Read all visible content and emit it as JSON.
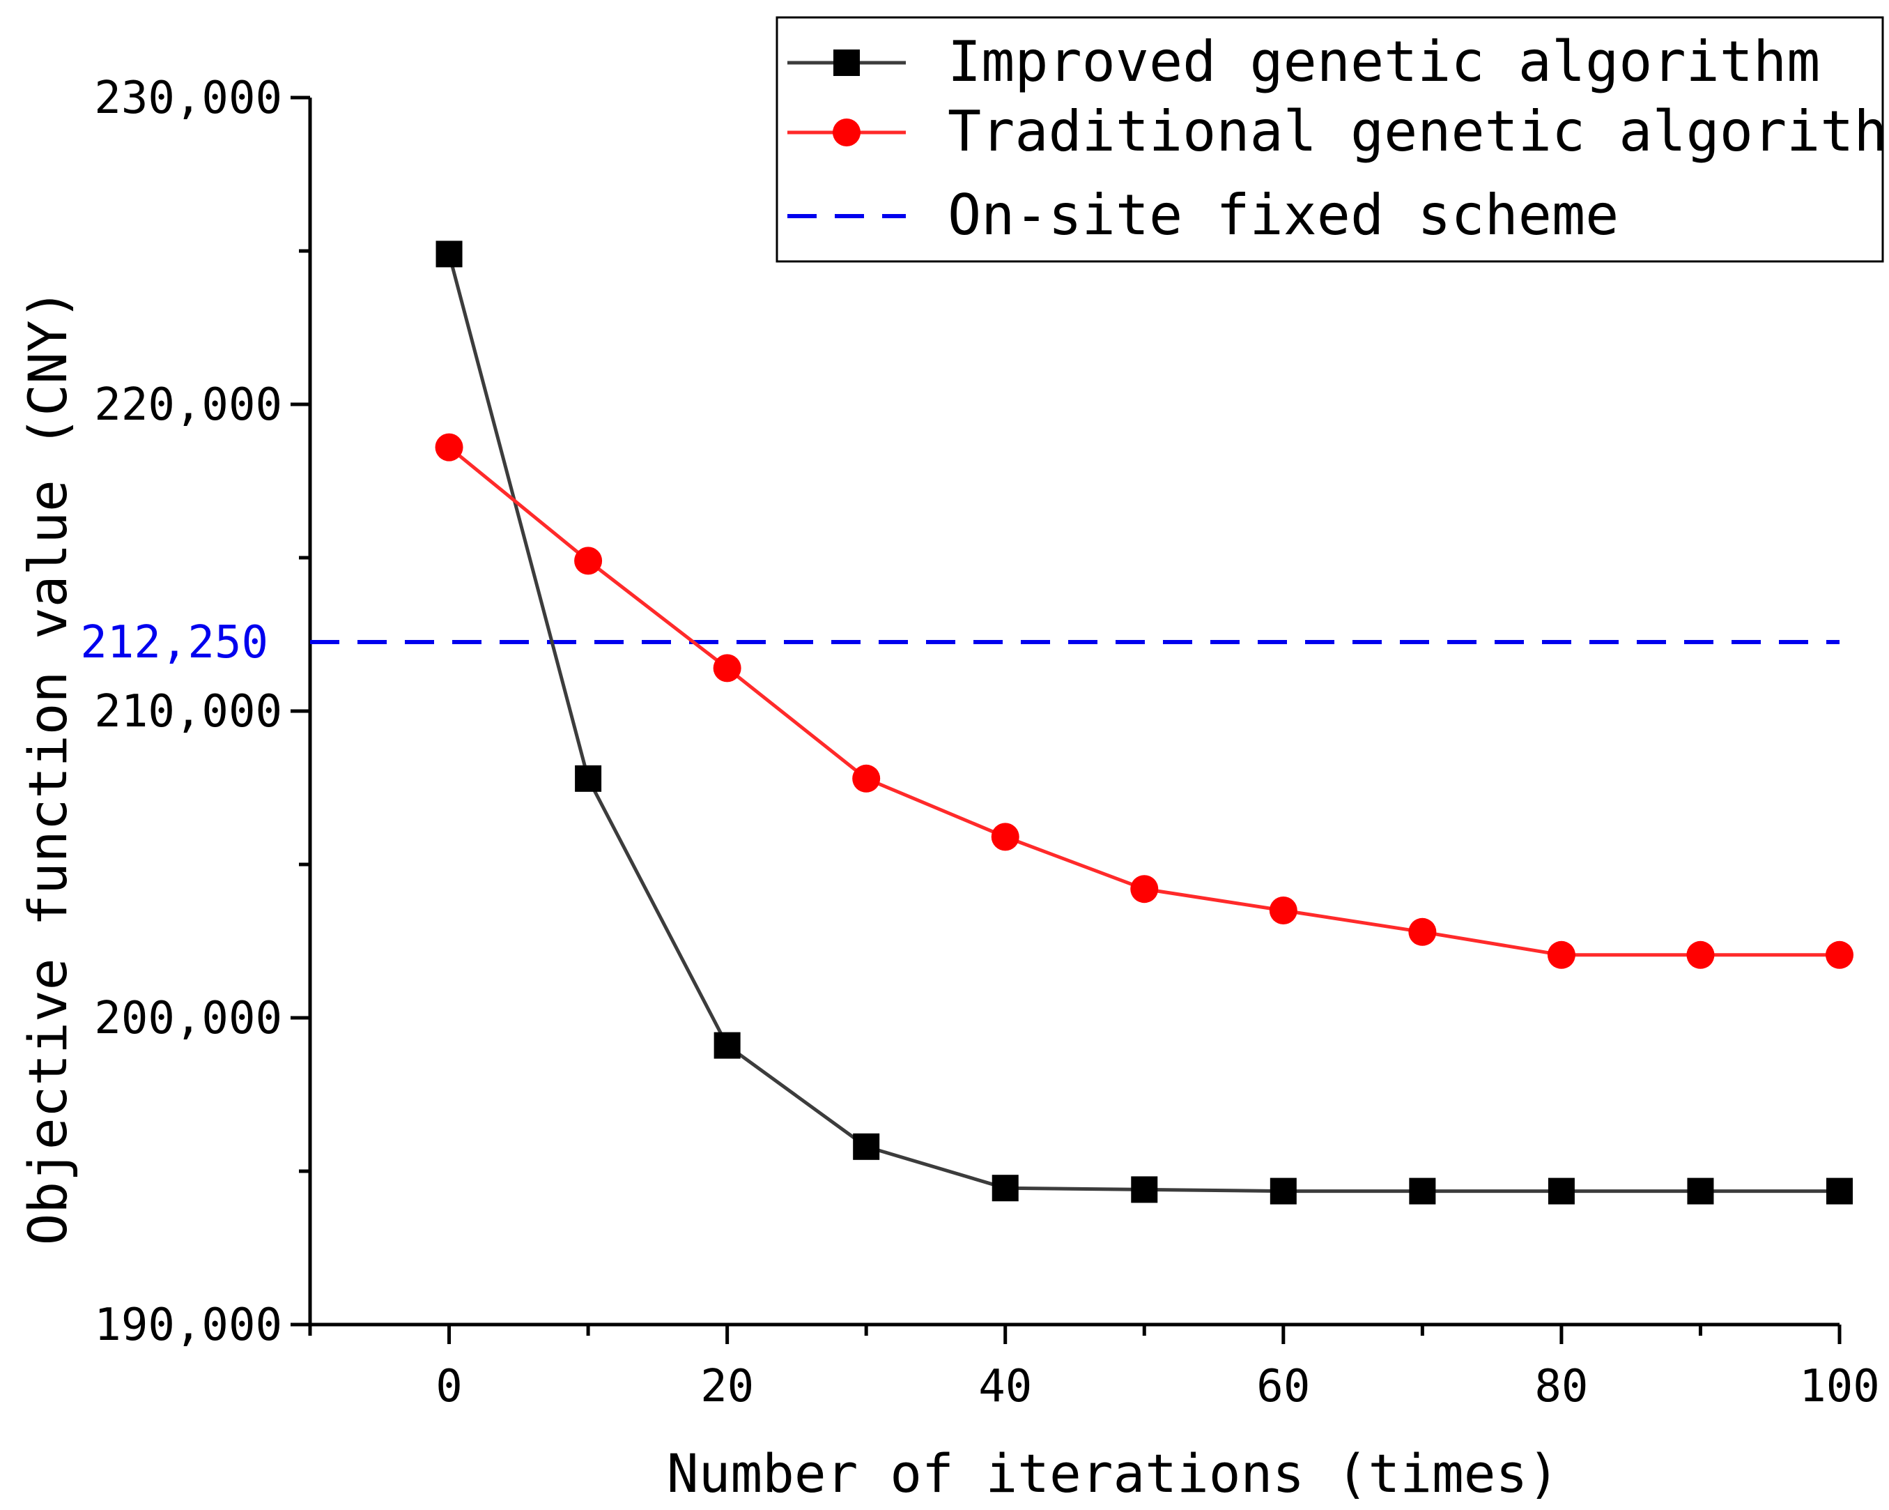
{
  "chart_data": {
    "type": "line",
    "title": "",
    "xlabel": "Number of iterations (times)",
    "ylabel": "Objective function value (CNY)",
    "xlim": [
      -10,
      100
    ],
    "ylim": [
      190000,
      230000
    ],
    "x_ticks": [
      0,
      20,
      40,
      60,
      80,
      100
    ],
    "x_tick_labels": [
      "0",
      "20",
      "40",
      "60",
      "80",
      "100"
    ],
    "y_ticks": [
      190000,
      200000,
      210000,
      220000,
      230000
    ],
    "y_tick_labels": [
      "190,000",
      "200,000",
      "210,000",
      "220,000",
      "230,000"
    ],
    "x": [
      0,
      10,
      20,
      30,
      40,
      50,
      60,
      70,
      80,
      90,
      100
    ],
    "series": [
      {
        "name": "Improved genetic algorithm",
        "color": "#3c3c3c",
        "marker": "square",
        "marker_color": "#000000",
        "values": [
          224900,
          207800,
          199100,
          195800,
          194450,
          194400,
          194350,
          194350,
          194350,
          194350,
          194350
        ]
      },
      {
        "name": "Traditional genetic algorithm",
        "color": "#ff2a2a",
        "marker": "circle",
        "marker_color": "#ff0000",
        "values": [
          218600,
          214900,
          211400,
          207800,
          205900,
          204200,
          203500,
          202800,
          202050,
          202050,
          202050
        ]
      }
    ],
    "reference_line": {
      "name": "On-site fixed scheme",
      "value": 212250,
      "label": "212,250",
      "color": "#0000ee",
      "style": "dashed"
    },
    "legend": {
      "placement": "top-right",
      "entries": [
        "Improved genetic algorithm",
        "Traditional genetic algorithm",
        "On-site fixed scheme"
      ]
    },
    "grid": false
  }
}
